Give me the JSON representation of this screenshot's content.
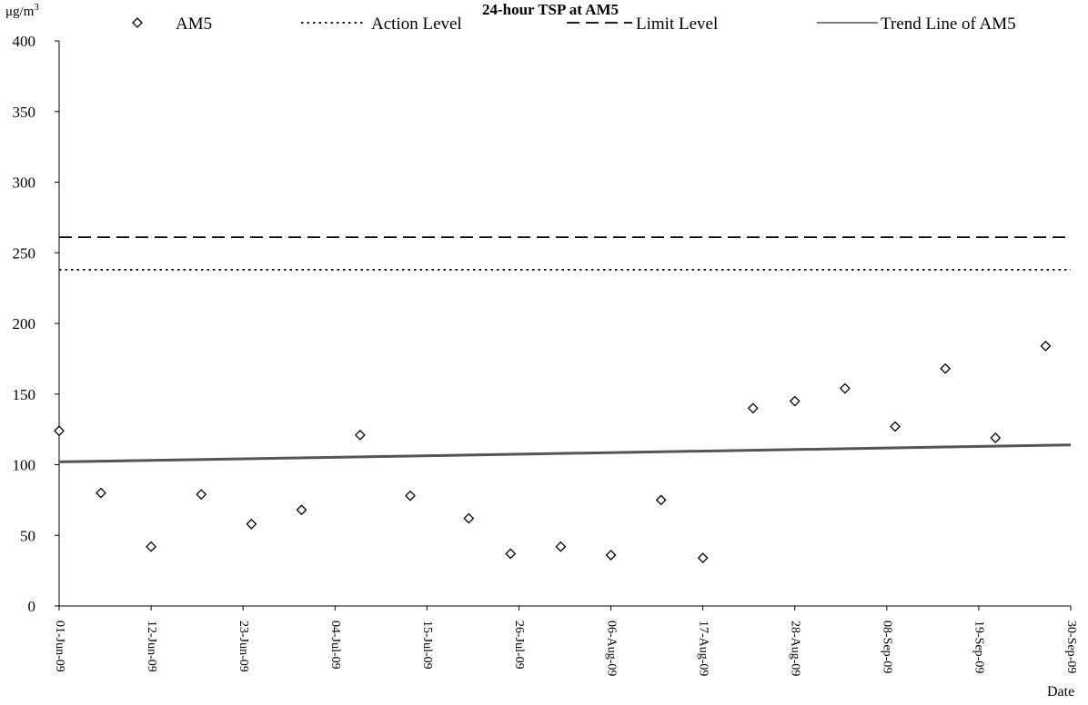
{
  "chart_data": {
    "type": "scatter",
    "title": "24-hour TSP at AM5",
    "ylabel_unit": "μg/m",
    "ylabel_unit_sup": "3",
    "xlabel": "Date",
    "ylim": [
      0,
      400
    ],
    "yticks": [
      0,
      50,
      100,
      150,
      200,
      250,
      300,
      350,
      400
    ],
    "xlim": [
      "2009-06-01",
      "2009-09-30"
    ],
    "xticks": [
      {
        "date": "2009-06-01",
        "label": "01-Jun-09"
      },
      {
        "date": "2009-06-12",
        "label": "12-Jun-09"
      },
      {
        "date": "2009-06-23",
        "label": "23-Jun-09"
      },
      {
        "date": "2009-07-04",
        "label": "04-Jul-09"
      },
      {
        "date": "2009-07-15",
        "label": "15-Jul-09"
      },
      {
        "date": "2009-07-26",
        "label": "26-Jul-09"
      },
      {
        "date": "2009-08-06",
        "label": "06-Aug-09"
      },
      {
        "date": "2009-08-17",
        "label": "17-Aug-09"
      },
      {
        "date": "2009-08-28",
        "label": "28-Aug-09"
      },
      {
        "date": "2009-09-08",
        "label": "08-Sep-09"
      },
      {
        "date": "2009-09-19",
        "label": "19-Sep-09"
      },
      {
        "date": "2009-09-30",
        "label": "30-Sep-09"
      }
    ],
    "grid": false,
    "legend_position": "top",
    "series": [
      {
        "name": "AM5",
        "kind": "points",
        "marker": "diamond",
        "points": [
          {
            "x": "2009-06-01",
            "y": 124
          },
          {
            "x": "2009-06-06",
            "y": 80
          },
          {
            "x": "2009-06-12",
            "y": 42
          },
          {
            "x": "2009-06-18",
            "y": 79
          },
          {
            "x": "2009-06-24",
            "y": 58
          },
          {
            "x": "2009-06-30",
            "y": 68
          },
          {
            "x": "2009-07-07",
            "y": 121
          },
          {
            "x": "2009-07-13",
            "y": 78
          },
          {
            "x": "2009-07-20",
            "y": 62
          },
          {
            "x": "2009-07-25",
            "y": 37
          },
          {
            "x": "2009-07-31",
            "y": 42
          },
          {
            "x": "2009-08-06",
            "y": 36
          },
          {
            "x": "2009-08-12",
            "y": 75
          },
          {
            "x": "2009-08-17",
            "y": 34
          },
          {
            "x": "2009-08-23",
            "y": 140
          },
          {
            "x": "2009-08-28",
            "y": 145
          },
          {
            "x": "2009-09-03",
            "y": 154
          },
          {
            "x": "2009-09-09",
            "y": 127
          },
          {
            "x": "2009-09-15",
            "y": 168
          },
          {
            "x": "2009-09-21",
            "y": 119
          },
          {
            "x": "2009-09-27",
            "y": 184
          }
        ]
      },
      {
        "name": "Action Level",
        "kind": "hline",
        "style": "dotted",
        "y": 238
      },
      {
        "name": "Limit Level",
        "kind": "hline",
        "style": "dashed",
        "y": 261
      },
      {
        "name": "Trend Line of AM5",
        "kind": "line",
        "style": "solid",
        "x": [
          "2009-06-01",
          "2009-09-30"
        ],
        "y": [
          102,
          114
        ]
      }
    ]
  }
}
